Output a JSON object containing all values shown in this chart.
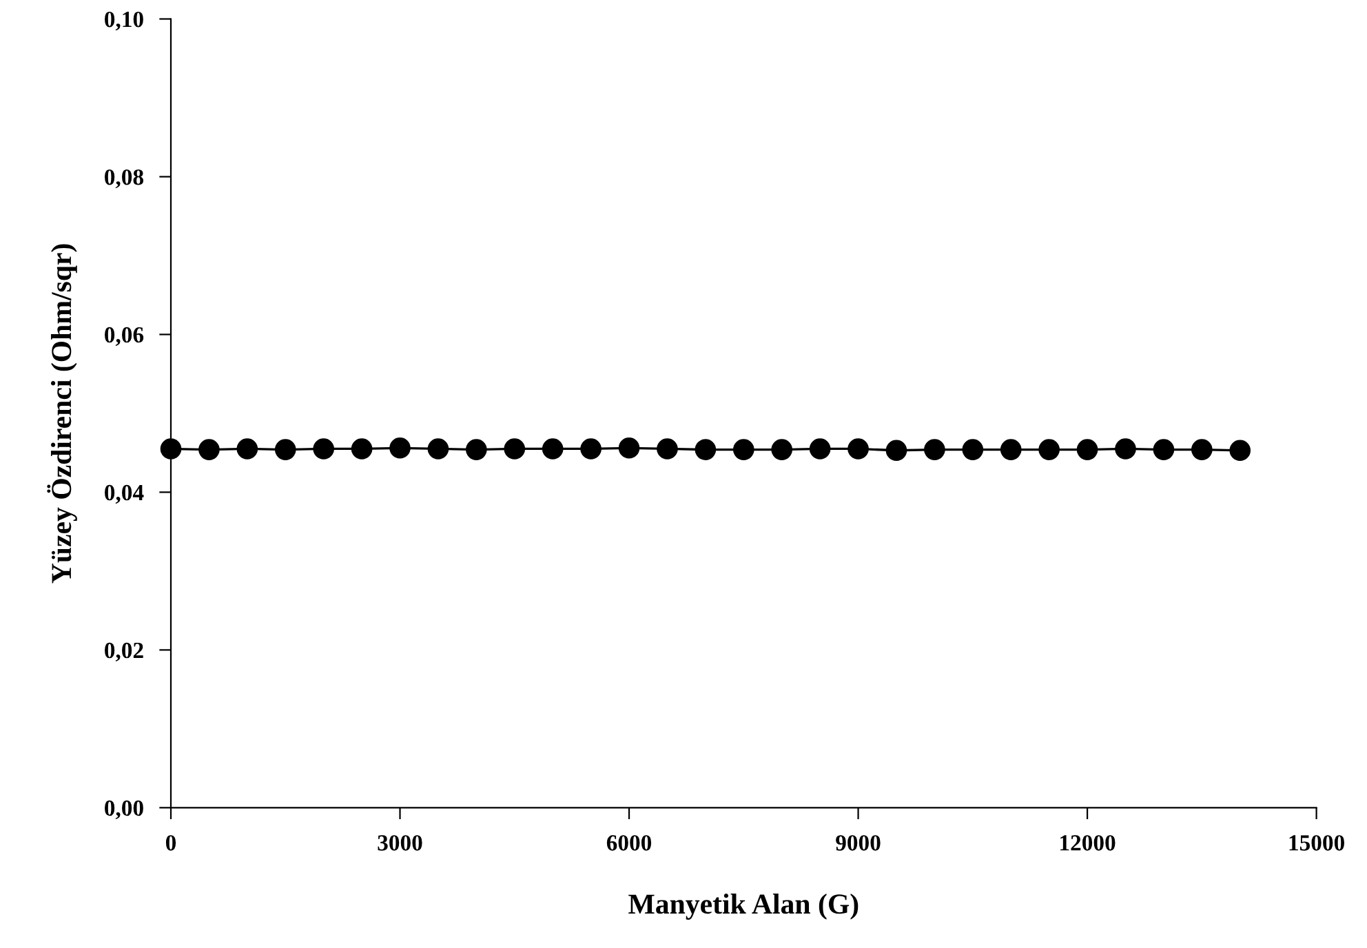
{
  "chart_data": {
    "type": "line",
    "xlabel": "Manyetik Alan (G)",
    "ylabel": "Yüzey Özdirenci (Ohm/sqr)",
    "x": [
      0,
      500,
      1000,
      1500,
      2000,
      2500,
      3000,
      3500,
      4000,
      4500,
      5000,
      5500,
      6000,
      6500,
      7000,
      7500,
      8000,
      8500,
      9000,
      9500,
      10000,
      10500,
      11000,
      11500,
      12000,
      12500,
      13000,
      13500,
      14000
    ],
    "series": [
      {
        "color": "#000000",
        "values": [
          0.0455,
          0.0454,
          0.0455,
          0.0454,
          0.0455,
          0.0455,
          0.0456,
          0.0455,
          0.0454,
          0.0455,
          0.0455,
          0.0455,
          0.0456,
          0.0455,
          0.0454,
          0.0454,
          0.0454,
          0.0455,
          0.0455,
          0.0453,
          0.0454,
          0.0454,
          0.0454,
          0.0454,
          0.0454,
          0.0455,
          0.0454,
          0.0454,
          0.0453
        ]
      }
    ],
    "xlim": [
      0,
      15000
    ],
    "xticks": [
      0,
      3000,
      6000,
      9000,
      12000,
      15000
    ],
    "ylim": [
      0,
      0.1
    ],
    "yticks": [
      {
        "value": 0,
        "label": "0,00"
      },
      {
        "value": 0.02,
        "label": "0,02"
      },
      {
        "value": 0.04,
        "label": "0,04"
      },
      {
        "value": 0.06,
        "label": "0,06"
      },
      {
        "value": 0.08,
        "label": "0,08"
      },
      {
        "value": 0.1,
        "label": "0,10"
      }
    ],
    "marker": "circle",
    "line_style": "solid",
    "grid": false,
    "legend": false
  }
}
